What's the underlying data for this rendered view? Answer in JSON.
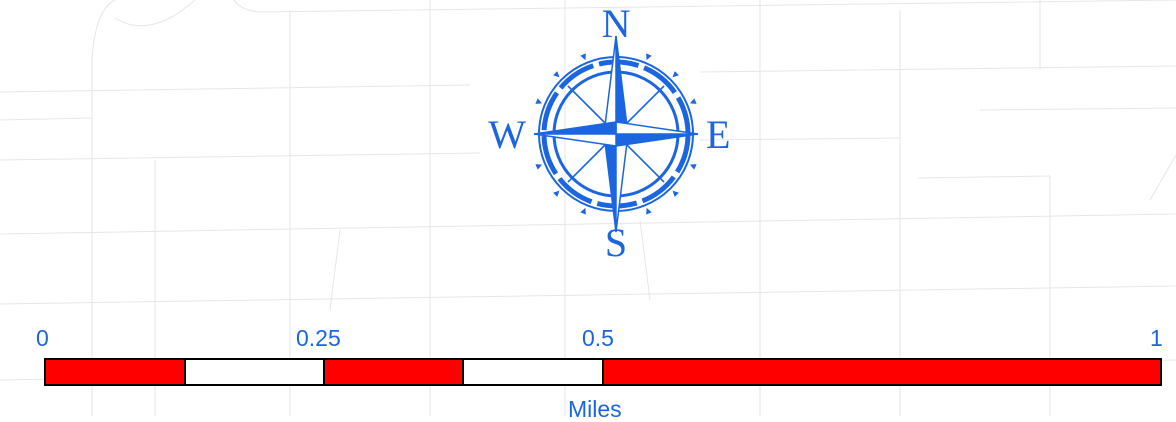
{
  "compass": {
    "north": "N",
    "east": "E",
    "south": "S",
    "west": "W",
    "color": "#1b66e0"
  },
  "scale_bar": {
    "labels": [
      "0",
      "0.25",
      "0.5",
      "1"
    ],
    "unit": "Miles",
    "segment_colors": [
      "#ff0000",
      "#ffffff",
      "#ff0000",
      "#ffffff",
      "#ff0000"
    ],
    "label_color": "#1b66e0"
  },
  "background": {
    "fill": "#ffffff",
    "street_color": "#e6e6e6"
  }
}
